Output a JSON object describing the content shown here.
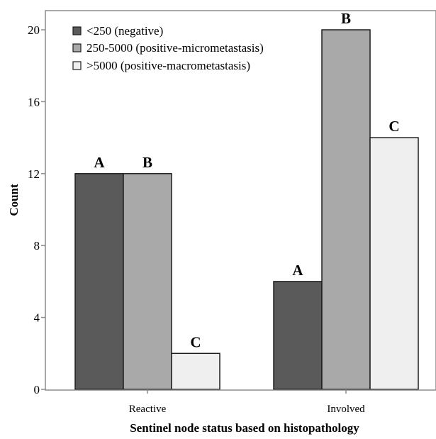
{
  "chart_data": {
    "type": "bar",
    "title": "",
    "xlabel": "Sentinel node status based on histopathology",
    "ylabel": "Count",
    "categories": [
      "Reactive",
      "Involved"
    ],
    "ylim": [
      0,
      22
    ],
    "yticks": [
      0,
      4,
      8,
      12,
      16,
      20
    ],
    "grid": false,
    "legend_position": "top-left",
    "series": [
      {
        "name": "<250 (negative)",
        "values": [
          12,
          6
        ],
        "labels": [
          "A",
          "A"
        ],
        "color": "#5a5a5a"
      },
      {
        "name": "250-5000 (positive-micrometastasis)",
        "values": [
          12,
          20
        ],
        "labels": [
          "B",
          "B"
        ],
        "color": "#a9a9a9"
      },
      {
        "name": ">5000 (positive-macrometastasis)",
        "values": [
          2,
          14
        ],
        "labels": [
          "C",
          "C"
        ],
        "color": "#efefef"
      }
    ]
  }
}
